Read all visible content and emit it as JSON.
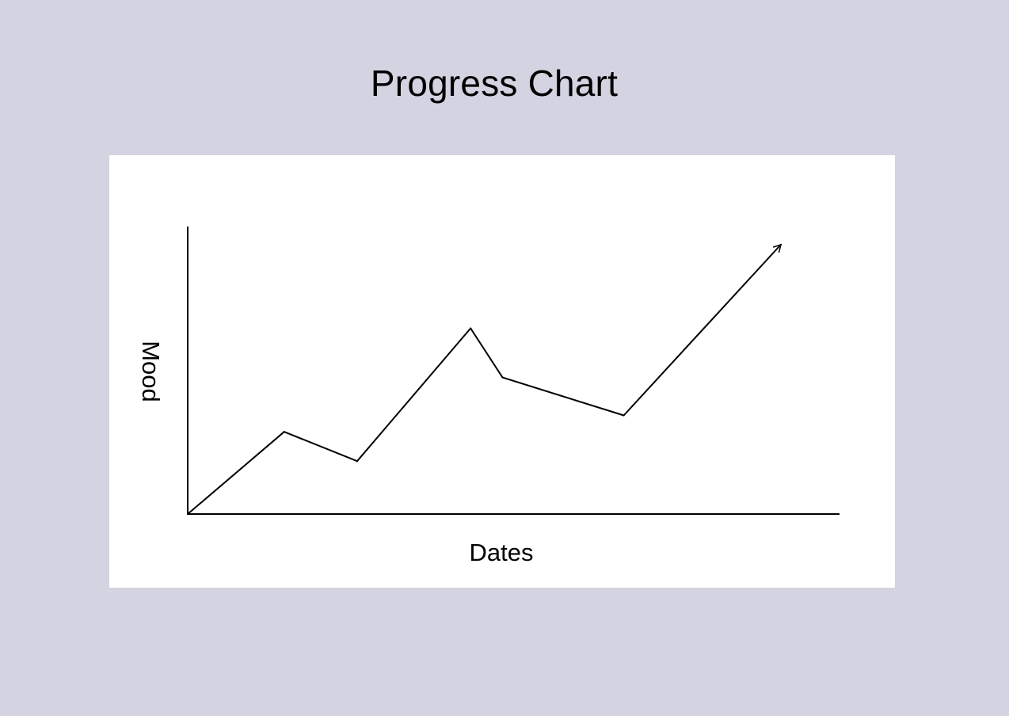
{
  "page": {
    "title": "Progress Chart",
    "background": "#d4d3e1"
  },
  "chart_data": {
    "type": "line",
    "xlabel": "Dates",
    "ylabel": "Mood",
    "x_ticks_shown": false,
    "y_ticks_shown": false,
    "grid": false,
    "legend": "none",
    "xlim": [
      0,
      10
    ],
    "ylim": [
      0,
      10
    ],
    "series": [
      {
        "color": "#000000",
        "end_marker": "arrow",
        "points": [
          {
            "x": 0,
            "y": 0
          },
          {
            "x": 1.48,
            "y": 2.86
          },
          {
            "x": 2.6,
            "y": 1.84
          },
          {
            "x": 4.34,
            "y": 6.46
          },
          {
            "x": 4.83,
            "y": 4.75
          },
          {
            "x": 6.69,
            "y": 3.43
          },
          {
            "x": 9.1,
            "y": 9.37
          }
        ]
      }
    ]
  }
}
